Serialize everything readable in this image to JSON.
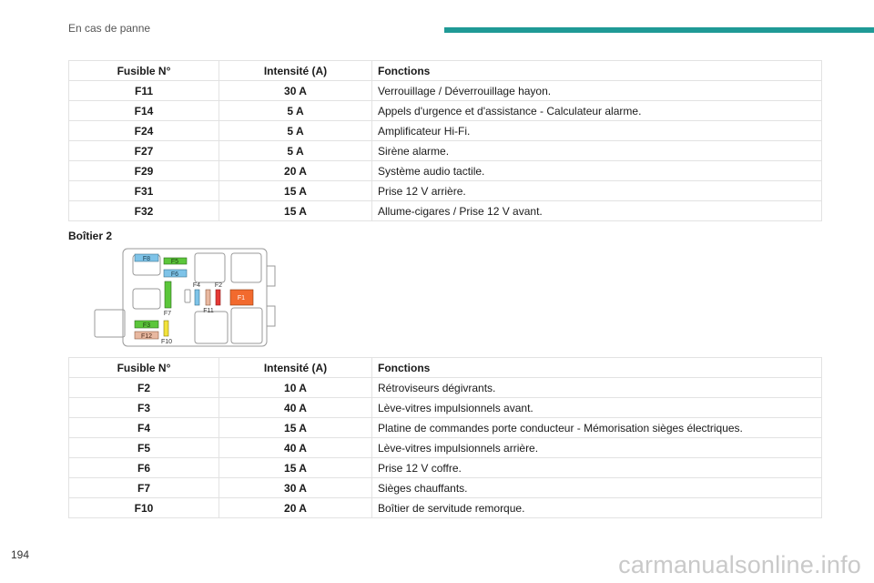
{
  "header": {
    "section_title": "En cas de panne",
    "accent_color": "#1f9a96"
  },
  "table1": {
    "headers": [
      "Fusible N°",
      "Intensité (A)",
      "Fonctions"
    ],
    "rows": [
      [
        "F11",
        "30 A",
        "Verrouillage / Déverrouillage hayon."
      ],
      [
        "F14",
        "5 A",
        "Appels d'urgence et d'assistance - Calculateur alarme."
      ],
      [
        "F24",
        "5 A",
        "Amplificateur Hi-Fi."
      ],
      [
        "F27",
        "5 A",
        "Sirène alarme."
      ],
      [
        "F29",
        "20 A",
        "Système audio tactile."
      ],
      [
        "F31",
        "15 A",
        "Prise 12 V arrière."
      ],
      [
        "F32",
        "15 A",
        "Allume-cigares / Prise 12 V avant."
      ]
    ]
  },
  "box2": {
    "title": "Boîtier 2",
    "labels": {
      "f8": "F8",
      "f5": "F5",
      "f6": "F6",
      "f4": "F4",
      "f2": "F2",
      "f1": "F1",
      "f7": "F7",
      "f11": "F11",
      "f3": "F3",
      "f12": "F12",
      "f10": "F10"
    }
  },
  "table2": {
    "headers": [
      "Fusible N°",
      "Intensité (A)",
      "Fonctions"
    ],
    "rows": [
      [
        "F2",
        "10 A",
        "Rétroviseurs dégivrants."
      ],
      [
        "F3",
        "40 A",
        "Lève-vitres impulsionnels avant."
      ],
      [
        "F4",
        "15 A",
        "Platine de commandes porte conducteur - Mémorisation sièges électriques."
      ],
      [
        "F5",
        "40 A",
        "Lève-vitres impulsionnels arrière."
      ],
      [
        "F6",
        "15 A",
        "Prise 12 V coffre."
      ],
      [
        "F7",
        "30 A",
        "Sièges chauffants."
      ],
      [
        "F10",
        "20 A",
        "Boîtier de servitude remorque."
      ]
    ]
  },
  "footer": {
    "page_number": "194",
    "watermark": "carmanualsonline.info"
  }
}
